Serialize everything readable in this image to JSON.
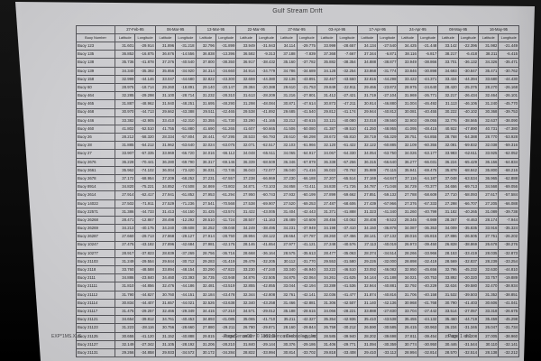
{
  "page": {
    "title": "Gulf Stream Drift"
  },
  "footer": {
    "left": "EXP*1MS.XLS",
    "center": "PageSense99 - © 1999 Dence Technology, Inc",
    "right": "Page 1 of 1"
  },
  "colors": {
    "paper": "#cbcbce",
    "scan_background": "#0a0a0a",
    "grid_line": "#55555a",
    "text": "#1c1c1e"
  },
  "chart_data": {
    "type": "table",
    "title": "Gulf Stream Drift",
    "row_header": "Buoy Number",
    "sub_columns": [
      "Latitude",
      "Longitude"
    ],
    "dates": [
      "27-Feb-95",
      "06-Mar-95",
      "13-Mar-95",
      "22-Mar-95",
      "27-Mar-95",
      "03-Apr-95",
      "17-Apr-95",
      "24-Apr-95",
      "08-May-95",
      "16-May-95"
    ],
    "rows": [
      {
        "buoy": "Buoy 123",
        "values": [
          "31.601",
          "-29.914",
          "31.896",
          "-31.218",
          "32.796",
          "-31.899",
          "33.949",
          "-31.943",
          "34.114",
          "-29.775",
          "33.999",
          "-28.657",
          "34.134",
          "-27.540",
          "34.425",
          "-21.448",
          "33.142",
          "-22.396",
          "31.982",
          "-21.449"
        ]
      },
      {
        "buoy": "Buoy 135",
        "values": [
          "36.852",
          "-16.875",
          "36.676",
          "-14.556",
          "36.838",
          "-13.396",
          "36.582",
          "-9.313",
          "37.188",
          "-7.839",
          "37.368",
          "-7.667",
          "37.344",
          "-6.871",
          "38.116",
          "-6.817",
          "38.217",
          "-6.418",
          "38.211",
          "-6.415"
        ]
      },
      {
        "buoy": "Buoy 138",
        "values": [
          "35.736",
          "-41.878",
          "37.376",
          "-40.540",
          "37.800",
          "-38.350",
          "36.917",
          "-38.432",
          "35.160",
          "-37.782",
          "35.882",
          "-38.354",
          "34.888",
          "-38.877",
          "33.949",
          "-38.866",
          "33.701",
          "-36.132",
          "34.326",
          "-35.471"
        ]
      },
      {
        "buoy": "Buoy 139",
        "values": [
          "34.340",
          "-35.392",
          "35.856",
          "-34.920",
          "34.314",
          "-34.660",
          "34.914",
          "-34.779",
          "34.786",
          "-34.689",
          "34.128",
          "-32.254",
          "33.868",
          "-31.774",
          "33.846",
          "-30.898",
          "34.693",
          "-30.847",
          "35.471",
          "-30.762"
        ]
      },
      {
        "buoy": "Buoy 158",
        "values": [
          "32.999",
          "-44.146",
          "33.047",
          "-44.680",
          "32.822",
          "-43.300",
          "32.659",
          "-44.380",
          "32.136",
          "-43.891",
          "32.467",
          "-43.550",
          "32.816",
          "-44.298",
          "33.422",
          "-44.371",
          "33.434",
          "-44.394",
          "33.680",
          "-44.430"
        ]
      },
      {
        "buoy": "Buoy 60",
        "values": [
          "28.975",
          "-18.714",
          "29.260",
          "-18.891",
          "29.140",
          "-20.147",
          "29.384",
          "-20.388",
          "29.610",
          "-21.753",
          "29.849",
          "-22.911",
          "29.466",
          "-23.872",
          "28.975",
          "-24.640",
          "28.420",
          "-25.376",
          "28.270",
          "-26.168"
        ]
      },
      {
        "buoy": "Buoy 464",
        "values": [
          "32.285",
          "-29.298",
          "31.100",
          "-28.714",
          "31.232",
          "-28.310",
          "31.613",
          "-28.209",
          "31.216",
          "-27.801",
          "31.412",
          "-27.421",
          "31.719",
          "-27.104",
          "31.969",
          "-26.771",
          "32.217",
          "-26.434",
          "32.464",
          "-26.101"
        ]
      },
      {
        "buoy": "Buoy 465",
        "values": [
          "31.887",
          "-48.962",
          "31.940",
          "-48.251",
          "31.695",
          "-48.290",
          "31.298",
          "-48.084",
          "30.871",
          "-47.614",
          "30.873",
          "-47.211",
          "30.914",
          "-46.880",
          "31.004",
          "-46.492",
          "31.113",
          "-46.106",
          "31.240",
          "-45.770"
        ]
      },
      {
        "buoy": "Buoy 468",
        "values": [
          "30.970",
          "-44.713",
          "29.662",
          "-43.388",
          "29.511",
          "-42.465",
          "29.538",
          "-41.892",
          "29.685",
          "-41.540",
          "29.812",
          "-41.174",
          "29.944",
          "-40.812",
          "30.081",
          "-40.455",
          "30.222",
          "-40.102",
          "30.368",
          "-39.753"
        ]
      },
      {
        "buoy": "Buoy 446",
        "values": [
          "33.382",
          "-42.905",
          "33.410",
          "-42.310",
          "33.355",
          "-41.730",
          "33.290",
          "-41.165",
          "33.212",
          "-40.615",
          "33.121",
          "-40.080",
          "33.018",
          "-39.560",
          "32.903",
          "-39.055",
          "32.776",
          "-38.565",
          "32.637",
          "-38.090"
        ]
      },
      {
        "buoy": "Buoy 460",
        "values": [
          "41.802",
          "-52.510",
          "41.755",
          "-51.880",
          "41.690",
          "-51.265",
          "41.607",
          "-50.665",
          "41.506",
          "-50.080",
          "41.387",
          "-49.510",
          "41.250",
          "-48.955",
          "41.095",
          "-48.415",
          "40.922",
          "-47.890",
          "40.731",
          "-47.380"
        ]
      },
      {
        "buoy": "Buoy 26",
        "values": [
          "28.212",
          "-58.320",
          "28.334",
          "-57.804",
          "28.441",
          "-57.295",
          "28.533",
          "-56.793",
          "28.610",
          "-56.298",
          "28.672",
          "-55.810",
          "28.719",
          "-55.329",
          "28.751",
          "-54.855",
          "28.768",
          "-54.388",
          "28.770",
          "-53.928"
        ]
      },
      {
        "buoy": "Buoy 28",
        "values": [
          "31.885",
          "-64.212",
          "31.962",
          "-63.640",
          "32.024",
          "-63.075",
          "32.071",
          "-62.517",
          "32.103",
          "-61.966",
          "32.120",
          "-61.422",
          "32.122",
          "-60.885",
          "32.109",
          "-60.355",
          "32.081",
          "-59.832",
          "32.038",
          "-59.316"
        ]
      },
      {
        "buoy": "Buoy 27",
        "values": [
          "33.907",
          "-67.335",
          "33.969",
          "-66.720",
          "34.016",
          "-66.112",
          "34.048",
          "-65.511",
          "34.065",
          "-64.917",
          "34.067",
          "-64.330",
          "34.054",
          "-63.750",
          "34.026",
          "-63.177",
          "33.983",
          "-62.611",
          "33.925",
          "-62.052"
        ]
      },
      {
        "buoy": "Buoy 2676",
        "values": [
          "36.228",
          "-70.441",
          "36.280",
          "-69.790",
          "36.317",
          "-69.146",
          "36.339",
          "-68.509",
          "36.346",
          "-67.879",
          "36.338",
          "-67.256",
          "36.315",
          "-66.640",
          "36.277",
          "-66.031",
          "36.224",
          "-65.429",
          "36.156",
          "-64.834"
        ]
      },
      {
        "buoy": "Buoy 2661",
        "values": [
          "35.962",
          "-74.102",
          "36.004",
          "-73.420",
          "36.031",
          "-72.745",
          "36.043",
          "-72.077",
          "36.040",
          "-71.416",
          "36.022",
          "-70.762",
          "35.989",
          "-70.115",
          "35.941",
          "-69.475",
          "35.878",
          "-68.842",
          "35.800",
          "-68.216"
        ]
      },
      {
        "buoy": "Buoy 2678",
        "values": [
          "37.172",
          "-68.954",
          "37.209",
          "-68.252",
          "37.231",
          "-67.557",
          "37.238",
          "-66.869",
          "37.230",
          "-66.188",
          "37.207",
          "-65.514",
          "37.169",
          "-64.847",
          "37.116",
          "-64.187",
          "37.048",
          "-63.534",
          "36.965",
          "-62.888"
        ]
      },
      {
        "buoy": "Buoy 8914",
        "values": [
          "34.820",
          "-75.221",
          "34.852",
          "-74.508",
          "34.869",
          "-73.802",
          "34.871",
          "-73.103",
          "34.858",
          "-72.411",
          "34.830",
          "-71.726",
          "34.787",
          "-71.048",
          "34.729",
          "-70.377",
          "34.656",
          "-69.713",
          "34.568",
          "-69.056"
        ]
      },
      {
        "buoy": "Buoy 2614",
        "values": [
          "27.914",
          "-62.417",
          "27.941",
          "-61.852",
          "27.953",
          "-61.294",
          "27.950",
          "-60.743",
          "27.932",
          "-60.199",
          "27.899",
          "-59.662",
          "27.851",
          "-59.132",
          "27.788",
          "-58.609",
          "27.710",
          "-58.093",
          "27.617",
          "-57.584"
        ]
      },
      {
        "buoy": "Buoy 14022",
        "values": [
          "27.502",
          "-71.911",
          "27.529",
          "-71.236",
          "27.541",
          "-70.568",
          "27.538",
          "-69.907",
          "27.520",
          "-69.253",
          "27.487",
          "-68.606",
          "27.439",
          "-67.966",
          "27.376",
          "-67.333",
          "27.298",
          "-66.707",
          "27.205",
          "-66.088"
        ]
      },
      {
        "buoy": "Buoy 22571",
        "values": [
          "31.386",
          "-44.733",
          "31.413",
          "-44.150",
          "31.425",
          "-43.574",
          "31.422",
          "-43.005",
          "31.404",
          "-42.443",
          "31.371",
          "-41.888",
          "31.323",
          "-41.340",
          "31.260",
          "-40.799",
          "31.182",
          "-40.265",
          "31.089",
          "-39.738"
        ]
      },
      {
        "buoy": "Buoy 26268",
        "values": [
          "28.471",
          "-12.867",
          "28.498",
          "-12.292",
          "28.510",
          "-11.724",
          "28.507",
          "-11.163",
          "28.489",
          "-10.609",
          "28.456",
          "-10.062",
          "28.408",
          "-9.522",
          "28.345",
          "-8.989",
          "28.267",
          "-8.463",
          "28.174",
          "-7.944"
        ]
      },
      {
        "buoy": "Buoy 26269",
        "values": [
          "34.213",
          "-40.175",
          "34.240",
          "-39.608",
          "34.252",
          "-39.048",
          "34.249",
          "-38.495",
          "34.231",
          "-37.949",
          "34.198",
          "-37.410",
          "34.150",
          "-36.878",
          "34.087",
          "-36.353",
          "34.009",
          "-35.835",
          "33.916",
          "-35.324"
        ]
      },
      {
        "buoy": "Buoy 26287",
        "values": [
          "27.660",
          "-29.713",
          "27.868",
          "-29.127",
          "27.914",
          "-28.750",
          "28.994",
          "-28.122",
          "28.664",
          "-27.787",
          "28.260",
          "-27.456",
          "28.141",
          "-27.132",
          "28.016",
          "-26.815",
          "27.886",
          "-26.505",
          "27.751",
          "-26.202"
        ]
      },
      {
        "buoy": "Buoy 10247",
        "values": [
          "27.475",
          "-43.182",
          "27.896",
          "-42.684",
          "27.981",
          "-42.175",
          "28.146",
          "-41.654",
          "27.977",
          "-41.121",
          "27.248",
          "-40.576",
          "27.113",
          "-40.019",
          "26.973",
          "-39.450",
          "26.828",
          "-38.869",
          "26.678",
          "-38.276"
        ]
      },
      {
        "buoy": "Buoy 10277",
        "values": [
          "28.917",
          "-37.823",
          "28.839",
          "-37.269",
          "28.756",
          "-36.716",
          "28.668",
          "-36.164",
          "28.575",
          "-35.613",
          "28.477",
          "-35.063",
          "28.374",
          "-34.514",
          "28.266",
          "-33.966",
          "28.153",
          "-33.419",
          "28.035",
          "-32.873"
        ]
      },
      {
        "buoy": "Buoy 21103",
        "values": [
          "31.249",
          "-29.554",
          "29.844",
          "-30.712",
          "29.283",
          "-31.419",
          "29.479",
          "-32.205",
          "30.112",
          "-31.770",
          "29.553",
          "-31.580",
          "29.226",
          "-32.000",
          "28.898",
          "-32.419",
          "28.569",
          "-32.837",
          "28.239",
          "-33.254"
        ]
      },
      {
        "buoy": "Buoy 2118",
        "values": [
          "33.760",
          "-48.588",
          "33.894",
          "-48.154",
          "33.290",
          "-47.822",
          "33.230",
          "-47.240",
          "33.340",
          "-46.940",
          "33.222",
          "-46.510",
          "33.092",
          "-46.082",
          "32.950",
          "-45.656",
          "32.796",
          "-45.232",
          "32.630",
          "-44.810"
        ]
      },
      {
        "buoy": "Buoy 2111",
        "values": [
          "34.886",
          "-23.840",
          "34.460",
          "-23.393",
          "34.735",
          "-22.948",
          "34.876",
          "-22.505",
          "34.875",
          "-22.064",
          "34.261",
          "-21.625",
          "34.144",
          "-21.188",
          "34.021",
          "-20.753",
          "33.892",
          "-20.320",
          "33.757",
          "-19.889"
        ]
      },
      {
        "buoy": "Buoy 21111",
        "values": [
          "31.810",
          "-44.856",
          "32.476",
          "-44.186",
          "32.481",
          "-43.519",
          "32.855",
          "-42.855",
          "33.044",
          "-42.194",
          "33.289",
          "-41.536",
          "32.944",
          "-40.881",
          "32.792",
          "-40.229",
          "32.634",
          "-39.580",
          "32.470",
          "-38.934"
        ]
      },
      {
        "buoy": "Buoy 21112",
        "values": [
          "31.790",
          "-44.827",
          "30.760",
          "-44.151",
          "32.184",
          "-43.478",
          "32.344",
          "-42.808",
          "32.761",
          "-42.141",
          "32.036",
          "-41.477",
          "31.874",
          "-40.816",
          "31.706",
          "-40.158",
          "31.532",
          "-39.503",
          "31.352",
          "-38.851"
        ]
      },
      {
        "buoy": "Buoy 21114",
        "values": [
          "30.834",
          "-44.407",
          "31.657",
          "-44.021",
          "32.526",
          "-43.638",
          "32.340",
          "-43.258",
          "31.466",
          "-42.881",
          "31.306",
          "-42.507",
          "31.140",
          "-42.136",
          "30.968",
          "-41.768",
          "30.790",
          "-41.403",
          "30.606",
          "-41.041"
        ]
      },
      {
        "buoy": "Buoy 21117",
        "values": [
          "31.475",
          "-29.257",
          "32.466",
          "-29.349",
          "34.415",
          "-27.210",
          "34.571",
          "-29.012",
          "35.188",
          "-28.615",
          "34.066",
          "-28.221",
          "33.888",
          "-27.830",
          "33.704",
          "-27.442",
          "33.514",
          "-27.057",
          "33.318",
          "-26.675"
        ]
      },
      {
        "buoy": "Buoy 21121",
        "values": [
          "34.654",
          "-39.812",
          "34.761",
          "-40.453",
          "34.893",
          "-41.085",
          "35.065",
          "-41.710",
          "35.211",
          "-42.327",
          "35.354",
          "-42.936",
          "35.410",
          "-43.538",
          "35.455",
          "-44.132",
          "35.460",
          "-44.719",
          "35.459",
          "-45.298"
        ]
      },
      {
        "buoy": "Buoy 21123",
        "values": [
          "31.223",
          "-28.116",
          "30.756",
          "-28.660",
          "27.880",
          "-29.211",
          "26.780",
          "-29.871",
          "28.160",
          "-29.844",
          "26.759",
          "-30.212",
          "26.590",
          "-30.585",
          "26.415",
          "-30.963",
          "26.234",
          "-31.346",
          "26.047",
          "-31.734"
        ]
      },
      {
        "buoy": "Buoy 21125",
        "values": [
          "30.655",
          "-41.120",
          "31.152",
          "-40.888",
          "29.815",
          "-40.654",
          "29.327",
          "-40.418",
          "28.960",
          "-40.180",
          "28.585",
          "-39.940",
          "28.202",
          "-39.698",
          "27.811",
          "-39.454",
          "27.412",
          "-39.208",
          "27.005",
          "-38.960"
        ]
      },
      {
        "buoy": "Buoy 21127",
        "values": [
          "32.149",
          "-27.342",
          "31.105",
          "-28.192",
          "31.206",
          "-28.210",
          "31.840",
          "-29.144",
          "30.376",
          "-29.186",
          "31.406",
          "-29.771",
          "31.094",
          "-30.359",
          "30.774",
          "-30.950",
          "30.446",
          "-31.544",
          "30.110",
          "-32.141"
        ]
      },
      {
        "buoy": "Buoy 21131",
        "values": [
          "29.266",
          "-34.858",
          "29.933",
          "-34.572",
          "30.172",
          "-34.284",
          "28.822",
          "-33.994",
          "30.814",
          "-33.702",
          "29.818",
          "-33.408",
          "29.410",
          "-33.112",
          "28.994",
          "-32.814",
          "28.570",
          "-32.514",
          "28.138",
          "-32.212"
        ]
      }
    ]
  }
}
